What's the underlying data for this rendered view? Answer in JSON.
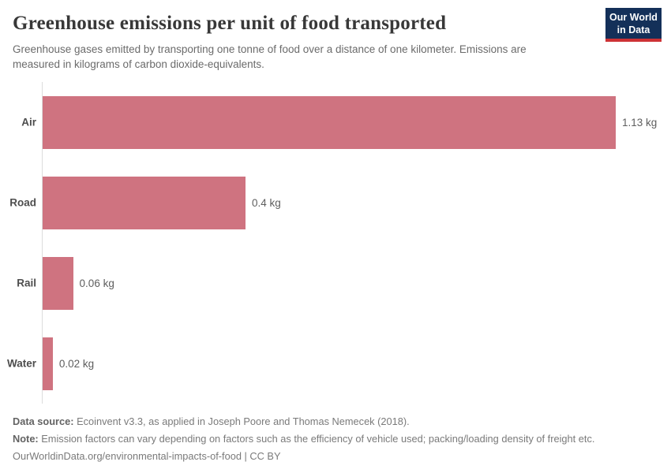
{
  "header": {
    "title": "Greenhouse emissions per unit of food transported",
    "subtitle_line1": "Greenhouse gases emitted by transporting one tonne of food over a distance of one kilometer. Emissions are",
    "subtitle_line2": "measured in kilograms of carbon dioxide-equivalents."
  },
  "logo": {
    "line1": "Our World",
    "line2": "in Data",
    "bg_color": "#143059",
    "stripe_color": "#cd3235"
  },
  "chart_data": {
    "type": "bar",
    "orientation": "horizontal",
    "title": "Greenhouse emissions per unit of food transported",
    "categories": [
      "Air",
      "Road",
      "Rail",
      "Water"
    ],
    "values": [
      1.13,
      0.4,
      0.06,
      0.02
    ],
    "value_labels": [
      "1.13 kg",
      "0.4 kg",
      "0.06 kg",
      "0.02 kg"
    ],
    "unit": "kg",
    "xlim": [
      0,
      1.13
    ],
    "bar_color": "#cf7380",
    "grid": false,
    "legend": false,
    "axis_line_color": "#dcdcdc"
  },
  "footer": {
    "data_source_label": "Data source:",
    "data_source_text": " Ecoinvent v3.3, as applied in Joseph Poore and Thomas Nemecek (2018).",
    "note_label": "Note:",
    "note_text": " Emission factors can vary depending on factors such as the efficiency of vehicle used; packing/loading density of freight etc.",
    "url_line": "OurWorldinData.org/environmental-impacts-of-food | CC BY"
  }
}
